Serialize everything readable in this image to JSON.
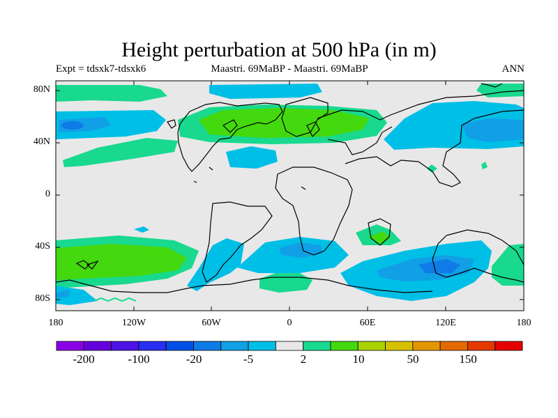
{
  "title": "Height perturbation at 500 hPa (in m)",
  "subtitle_left": "Expt = tdsxk7-tdsxk6",
  "subtitle_center": "Maastri.  69MaBP - Maastri.  69MaBP",
  "subtitle_right": "ANN",
  "y_ticks": [
    "80N",
    "40N",
    "0",
    "40S",
    "80S"
  ],
  "x_ticks": [
    "180",
    "120W",
    "60W",
    "0",
    "60E",
    "120E",
    "180"
  ],
  "colorbar": {
    "colors": [
      "#8a00e6",
      "#6600dd",
      "#4d13e6",
      "#2a2ef0",
      "#0050e6",
      "#0f7be6",
      "#119fe6",
      "#00bfe6",
      "#e8e8e8",
      "#18d98e",
      "#44d80e",
      "#aad200",
      "#d7c000",
      "#e49600",
      "#e46a00",
      "#e43a00",
      "#e60000"
    ],
    "labels": [
      "-200",
      "-100",
      "-20",
      "-5",
      "2",
      "10",
      "50",
      "150"
    ]
  },
  "colors": {
    "background_field": "#e8e8e8",
    "light_blue": "#00bfe6",
    "mid_blue": "#119fe6",
    "green_teal": "#18d98e",
    "bright_green": "#44d80e"
  }
}
